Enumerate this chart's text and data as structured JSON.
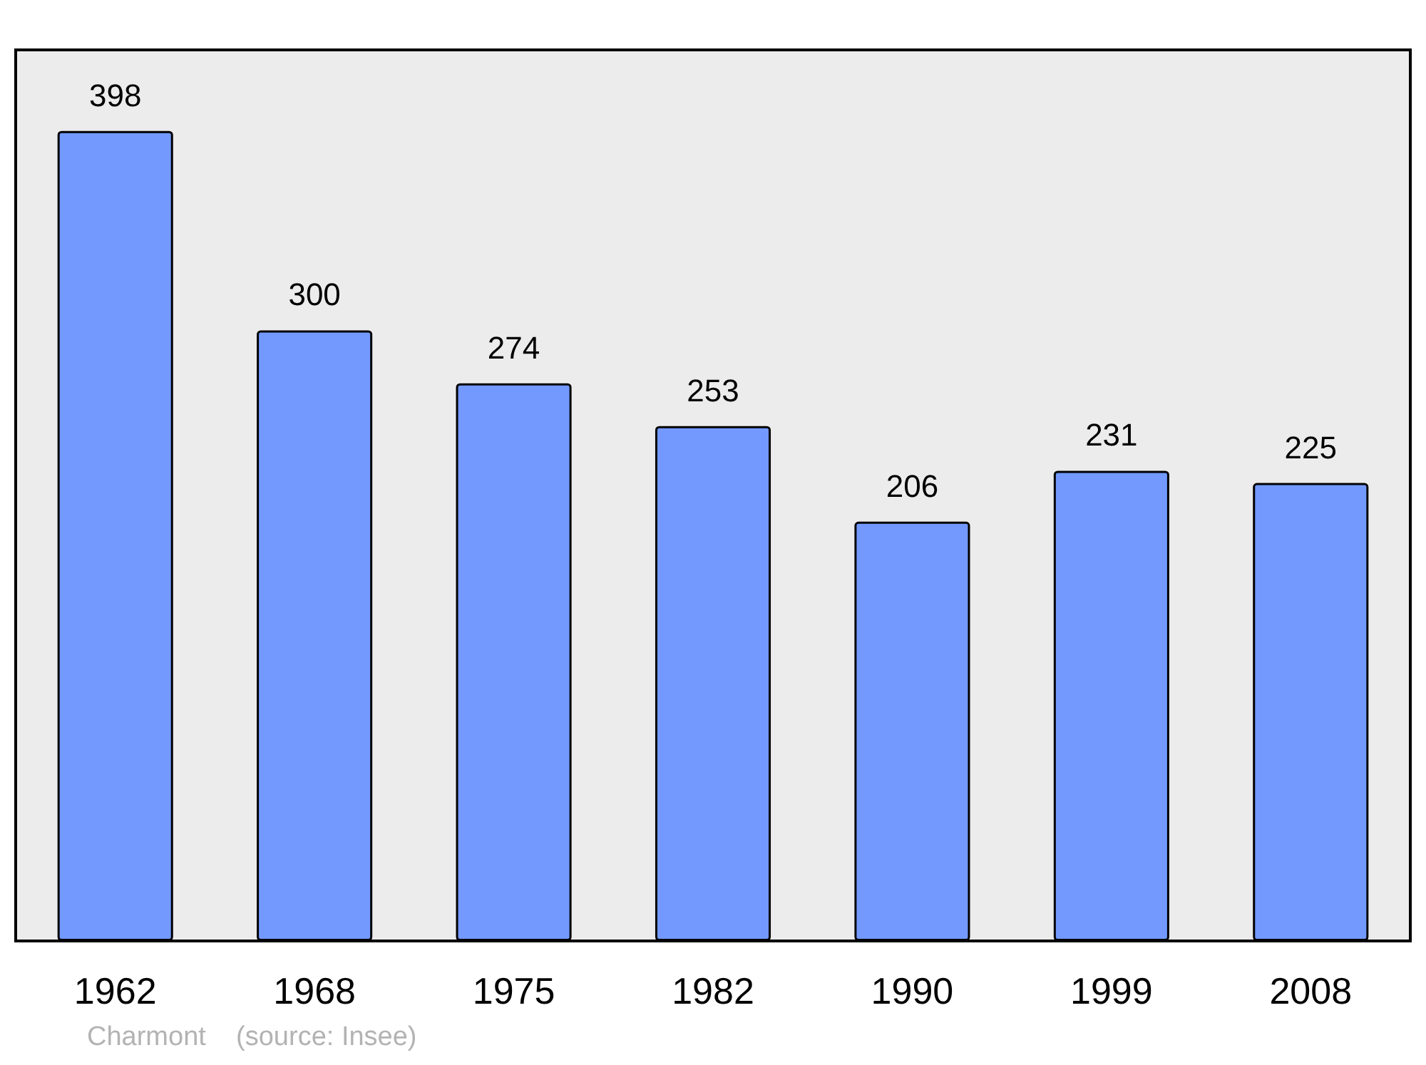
{
  "chart_data": {
    "type": "bar",
    "categories": [
      "1962",
      "1968",
      "1975",
      "1982",
      "1990",
      "1999",
      "2008"
    ],
    "values": [
      398,
      300,
      274,
      253,
      206,
      231,
      225
    ],
    "color": "#7399ff",
    "data_labels": true,
    "annotations": [
      "Charmont    (source: Insee)"
    ]
  }
}
